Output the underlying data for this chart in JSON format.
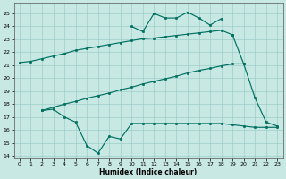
{
  "xlabel": "Humidex (Indice chaleur)",
  "xlim": [
    -0.5,
    23.5
  ],
  "ylim": [
    13.8,
    25.8
  ],
  "xticks": [
    0,
    1,
    2,
    3,
    4,
    5,
    6,
    7,
    8,
    9,
    10,
    11,
    12,
    13,
    14,
    15,
    16,
    17,
    18,
    19,
    20,
    21,
    22,
    23
  ],
  "yticks": [
    14,
    15,
    16,
    17,
    18,
    19,
    20,
    21,
    22,
    23,
    24,
    25
  ],
  "bg_color": "#c8e8e4",
  "grid_color": "#9ececa",
  "line_color": "#007060",
  "curves": [
    {
      "x": [
        0,
        1,
        2,
        3,
        4,
        5,
        6,
        7,
        8,
        9,
        10,
        11,
        12,
        13,
        14,
        15,
        16,
        17,
        18,
        19
      ],
      "y": [
        21.2,
        21.3,
        21.5,
        21.7,
        21.9,
        22.15,
        22.3,
        22.45,
        22.6,
        22.75,
        22.9,
        23.05,
        23.1,
        23.2,
        23.3,
        23.4,
        23.5,
        23.6,
        23.7,
        23.35
      ]
    },
    {
      "x": [
        19,
        20,
        21,
        22,
        23
      ],
      "y": [
        23.35,
        21.1,
        18.5,
        16.6,
        16.3
      ]
    },
    {
      "x": [
        2,
        3,
        4,
        5,
        6,
        7,
        8,
        9,
        10,
        11,
        12,
        13,
        14,
        15,
        16,
        17,
        18,
        19,
        20
      ],
      "y": [
        17.5,
        17.75,
        18.0,
        18.2,
        18.45,
        18.65,
        18.85,
        19.1,
        19.3,
        19.55,
        19.75,
        19.95,
        20.15,
        20.4,
        20.6,
        20.75,
        20.95,
        21.1,
        21.1
      ]
    },
    {
      "x": [
        2,
        3,
        4,
        5,
        6,
        7,
        8,
        9,
        10,
        11,
        12,
        13,
        14,
        15,
        16,
        17,
        18,
        19,
        20,
        21,
        22,
        23
      ],
      "y": [
        17.5,
        17.6,
        17.0,
        16.6,
        14.8,
        14.2,
        15.5,
        15.3,
        16.5,
        16.5,
        16.5,
        16.5,
        16.5,
        16.5,
        16.5,
        16.5,
        16.5,
        16.4,
        16.3,
        16.2,
        16.2,
        16.2
      ]
    },
    {
      "x": [
        10,
        11,
        12,
        13,
        14,
        15,
        16,
        17,
        18
      ],
      "y": [
        24.0,
        23.6,
        25.0,
        24.65,
        24.65,
        25.1,
        24.65,
        24.1,
        24.6
      ]
    }
  ]
}
